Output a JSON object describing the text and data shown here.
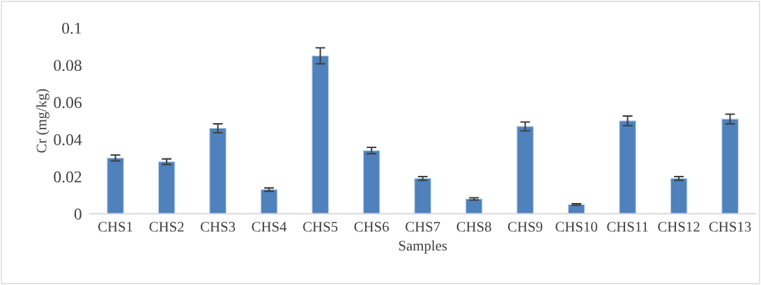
{
  "chart_data": {
    "type": "bar",
    "xlabel": "Samples",
    "ylabel": "Cr (mg/kg)",
    "categories": [
      "CHS1",
      "CHS2",
      "CHS3",
      "CHS4",
      "CHS5",
      "CHS6",
      "CHS7",
      "CHS8",
      "CHS9",
      "CHS10",
      "CHS11",
      "CHS12",
      "CHS13"
    ],
    "values": [
      0.03,
      0.028,
      0.046,
      0.013,
      0.085,
      0.034,
      0.019,
      0.008,
      0.047,
      0.005,
      0.05,
      0.019,
      0.051
    ],
    "errors": [
      0.0016,
      0.0015,
      0.0024,
      0.0009,
      0.0043,
      0.0017,
      0.001,
      0.0006,
      0.0024,
      0.0004,
      0.0026,
      0.001,
      0.0026
    ],
    "color": "#4f81bd",
    "ylim": [
      0,
      0.1
    ],
    "yticks": [
      0,
      0.02,
      0.04,
      0.06,
      0.08,
      0.1
    ],
    "grid": false,
    "legend": false
  }
}
